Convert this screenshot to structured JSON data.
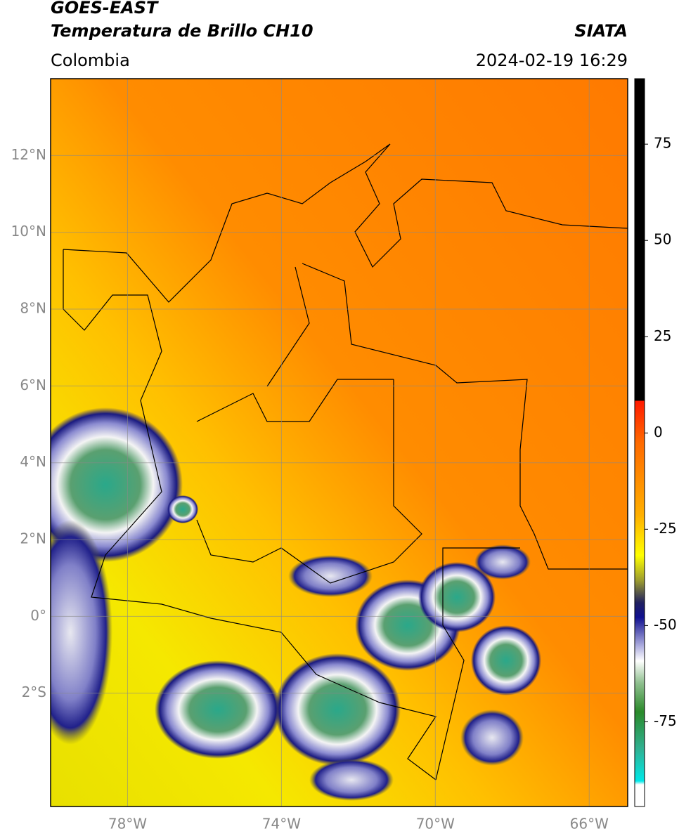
{
  "header": {
    "satellite": "GOES-EAST",
    "product": "Temperatura de Brillo CH10",
    "region": "Colombia",
    "source": "SIATA",
    "datetime": "2024-02-19 16:29"
  },
  "map": {
    "lonlim": [
      -80,
      -65
    ],
    "latlim": [
      -4.95,
      14
    ],
    "lat_ticks": [
      {
        "value": 12,
        "label": "12°N"
      },
      {
        "value": 10,
        "label": "10°N"
      },
      {
        "value": 8,
        "label": "8°N"
      },
      {
        "value": 6,
        "label": "6°N"
      },
      {
        "value": 4,
        "label": "4°N"
      },
      {
        "value": 2,
        "label": "2°N"
      },
      {
        "value": 0,
        "label": "0°"
      },
      {
        "value": -2,
        "label": "2°S"
      }
    ],
    "lon_ticks": [
      {
        "value": -78,
        "label": "78°W"
      },
      {
        "value": -74,
        "label": "74°W"
      },
      {
        "value": -70,
        "label": "70°W"
      },
      {
        "value": -66,
        "label": "66°W"
      }
    ]
  },
  "colorbar": {
    "range": [
      -97,
      92
    ],
    "ticks": [
      75,
      50,
      25,
      0,
      -25,
      -50,
      -75
    ]
  }
}
